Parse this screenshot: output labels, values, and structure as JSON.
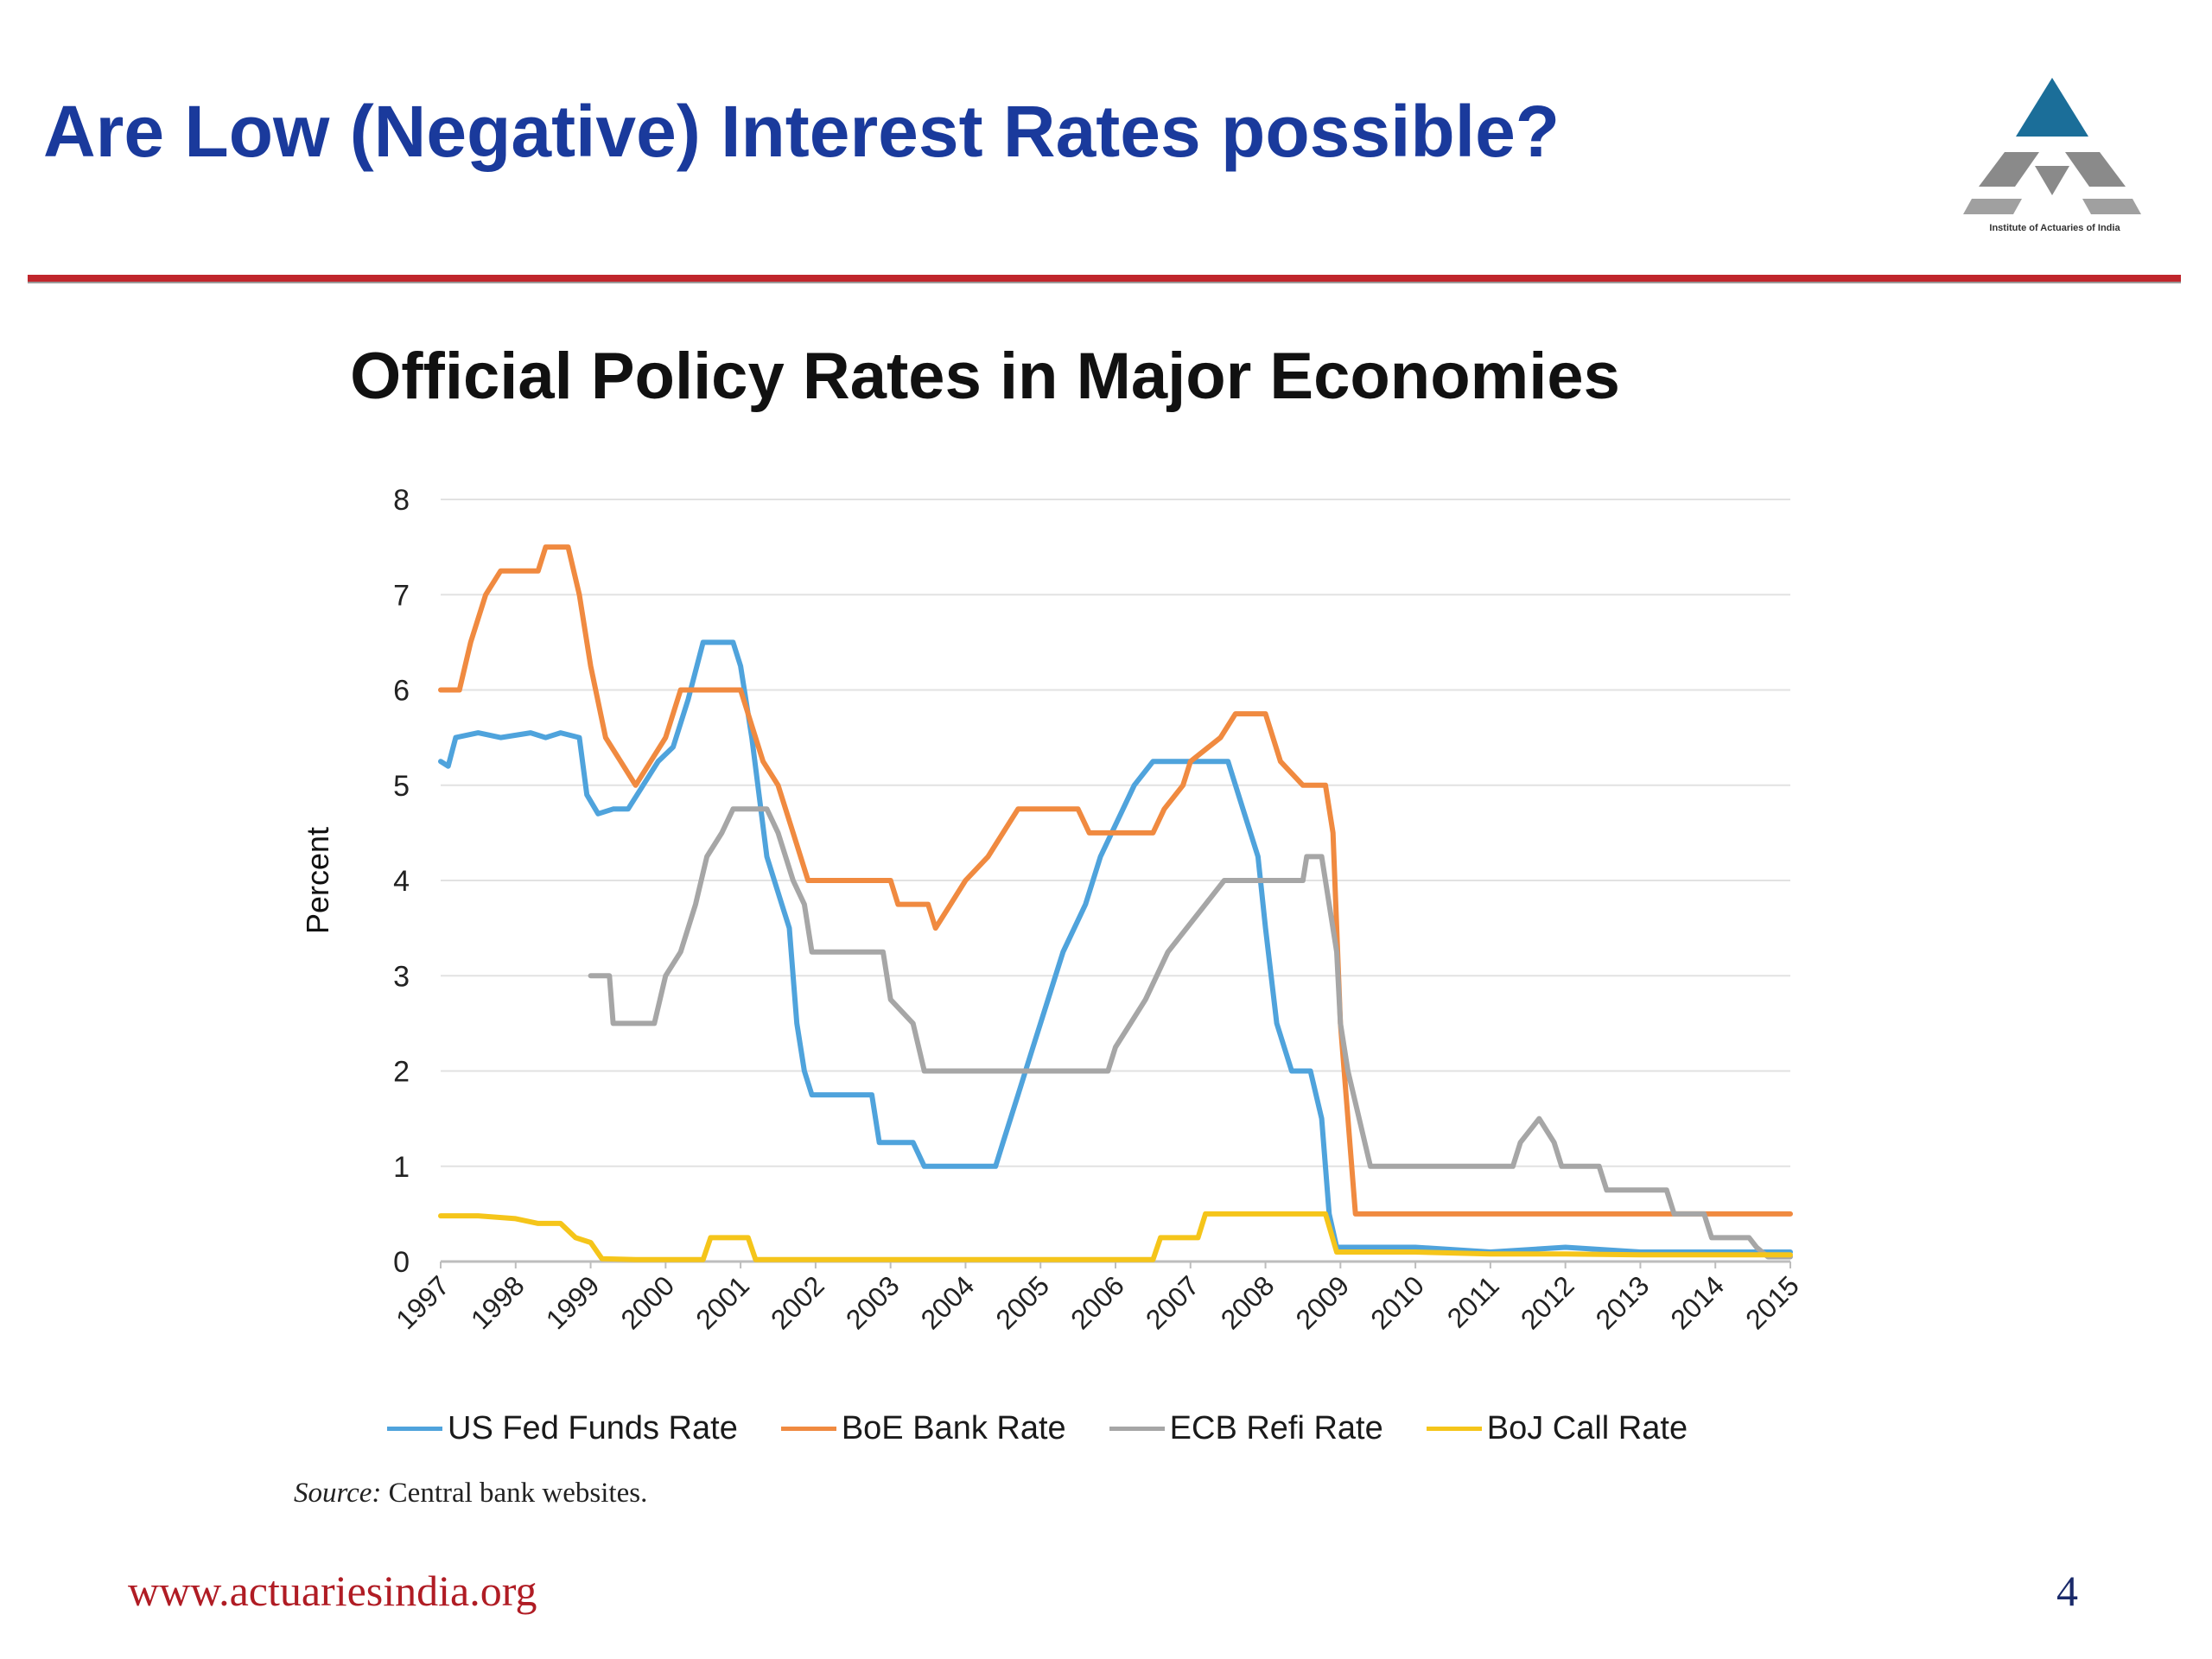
{
  "slide": {
    "title": "Are Low (Negative) Interest Rates possible?",
    "logo_caption": "Institute of Actuaries of India",
    "footer_url": "www.actuariesindia.org",
    "page_number": "4",
    "source_label": "Source:",
    "source_text": " Central bank websites."
  },
  "colors": {
    "title": "#1a3a9c",
    "rule": "#c0262c",
    "us_fed": "#4fa3dc",
    "boe": "#f08a40",
    "ecb": "#a6a6a6",
    "boj": "#f5c51a"
  },
  "chart_data": {
    "type": "line",
    "title": "Official Policy Rates in Major Economies",
    "xlabel": "",
    "ylabel": "Percent",
    "xlim": [
      1997,
      2015
    ],
    "ylim": [
      0,
      8
    ],
    "grid": true,
    "legend_position": "bottom",
    "x_tick_labels": [
      "1997",
      "1998",
      "1999",
      "2000",
      "2001",
      "2002",
      "2003",
      "2004",
      "2005",
      "2006",
      "2007",
      "2008",
      "2009",
      "2010",
      "2011",
      "2012",
      "2013",
      "2014",
      "2015"
    ],
    "y_tick_labels": [
      "0",
      "1",
      "2",
      "3",
      "4",
      "5",
      "6",
      "7",
      "8"
    ],
    "series": [
      {
        "name": "US Fed Funds Rate",
        "color": "#4fa3dc",
        "points": [
          [
            1997.0,
            5.25
          ],
          [
            1997.1,
            5.2
          ],
          [
            1997.2,
            5.5
          ],
          [
            1997.5,
            5.55
          ],
          [
            1997.8,
            5.5
          ],
          [
            1998.2,
            5.55
          ],
          [
            1998.4,
            5.5
          ],
          [
            1998.6,
            5.55
          ],
          [
            1998.85,
            5.5
          ],
          [
            1998.95,
            4.9
          ],
          [
            1999.1,
            4.7
          ],
          [
            1999.3,
            4.75
          ],
          [
            1999.5,
            4.75
          ],
          [
            1999.7,
            5.0
          ],
          [
            1999.9,
            5.25
          ],
          [
            2000.1,
            5.4
          ],
          [
            2000.3,
            5.9
          ],
          [
            2000.5,
            6.5
          ],
          [
            2000.7,
            6.5
          ],
          [
            2000.9,
            6.5
          ],
          [
            2001.0,
            6.25
          ],
          [
            2001.15,
            5.5
          ],
          [
            2001.35,
            4.25
          ],
          [
            2001.55,
            3.75
          ],
          [
            2001.65,
            3.5
          ],
          [
            2001.75,
            2.5
          ],
          [
            2001.85,
            2.0
          ],
          [
            2001.95,
            1.75
          ],
          [
            2002.5,
            1.75
          ],
          [
            2002.75,
            1.75
          ],
          [
            2002.85,
            1.25
          ],
          [
            2003.3,
            1.25
          ],
          [
            2003.45,
            1.0
          ],
          [
            2003.9,
            1.0
          ],
          [
            2004.4,
            1.0
          ],
          [
            2004.5,
            1.25
          ],
          [
            2004.7,
            1.75
          ],
          [
            2004.9,
            2.25
          ],
          [
            2005.1,
            2.75
          ],
          [
            2005.3,
            3.25
          ],
          [
            2005.6,
            3.75
          ],
          [
            2005.8,
            4.25
          ],
          [
            2006.1,
            4.75
          ],
          [
            2006.25,
            5.0
          ],
          [
            2006.5,
            5.25
          ],
          [
            2007.0,
            5.25
          ],
          [
            2007.5,
            5.25
          ],
          [
            2007.7,
            4.75
          ],
          [
            2007.9,
            4.25
          ],
          [
            2008.0,
            3.5
          ],
          [
            2008.15,
            2.5
          ],
          [
            2008.35,
            2.0
          ],
          [
            2008.6,
            2.0
          ],
          [
            2008.75,
            1.5
          ],
          [
            2008.85,
            0.5
          ],
          [
            2008.95,
            0.15
          ],
          [
            2009.5,
            0.15
          ],
          [
            2010.0,
            0.15
          ],
          [
            2011.0,
            0.1
          ],
          [
            2012.0,
            0.15
          ],
          [
            2013.0,
            0.1
          ],
          [
            2014.0,
            0.1
          ],
          [
            2015.0,
            0.1
          ]
        ]
      },
      {
        "name": "BoE Bank Rate",
        "color": "#f08a40",
        "points": [
          [
            1997.0,
            6.0
          ],
          [
            1997.25,
            6.0
          ],
          [
            1997.4,
            6.5
          ],
          [
            1997.6,
            7.0
          ],
          [
            1997.8,
            7.25
          ],
          [
            1998.0,
            7.25
          ],
          [
            1998.3,
            7.25
          ],
          [
            1998.4,
            7.5
          ],
          [
            1998.7,
            7.5
          ],
          [
            1998.85,
            7.0
          ],
          [
            1999.0,
            6.25
          ],
          [
            1999.2,
            5.5
          ],
          [
            1999.4,
            5.25
          ],
          [
            1999.6,
            5.0
          ],
          [
            1999.8,
            5.25
          ],
          [
            2000.0,
            5.5
          ],
          [
            2000.2,
            6.0
          ],
          [
            2000.5,
            6.0
          ],
          [
            2001.0,
            6.0
          ],
          [
            2001.1,
            5.75
          ],
          [
            2001.3,
            5.25
          ],
          [
            2001.5,
            5.0
          ],
          [
            2001.7,
            4.5
          ],
          [
            2001.9,
            4.0
          ],
          [
            2003.0,
            4.0
          ],
          [
            2003.1,
            3.75
          ],
          [
            2003.5,
            3.75
          ],
          [
            2003.6,
            3.5
          ],
          [
            2003.8,
            3.75
          ],
          [
            2004.0,
            4.0
          ],
          [
            2004.3,
            4.25
          ],
          [
            2004.5,
            4.5
          ],
          [
            2004.7,
            4.75
          ],
          [
            2005.5,
            4.75
          ],
          [
            2005.65,
            4.5
          ],
          [
            2006.5,
            4.5
          ],
          [
            2006.65,
            4.75
          ],
          [
            2006.9,
            5.0
          ],
          [
            2007.0,
            5.25
          ],
          [
            2007.4,
            5.5
          ],
          [
            2007.6,
            5.75
          ],
          [
            2008.0,
            5.75
          ],
          [
            2008.2,
            5.25
          ],
          [
            2008.5,
            5.0
          ],
          [
            2008.8,
            5.0
          ],
          [
            2008.9,
            4.5
          ],
          [
            2009.0,
            2.5
          ],
          [
            2009.1,
            1.5
          ],
          [
            2009.2,
            0.5
          ],
          [
            2010.0,
            0.5
          ],
          [
            2015.0,
            0.5
          ]
        ]
      },
      {
        "name": "ECB Refi Rate",
        "color": "#a6a6a6",
        "points": [
          [
            1999.0,
            3.0
          ],
          [
            1999.25,
            3.0
          ],
          [
            1999.3,
            2.5
          ],
          [
            1999.85,
            2.5
          ],
          [
            2000.0,
            3.0
          ],
          [
            2000.2,
            3.25
          ],
          [
            2000.4,
            3.75
          ],
          [
            2000.55,
            4.25
          ],
          [
            2000.75,
            4.5
          ],
          [
            2000.9,
            4.75
          ],
          [
            2001.35,
            4.75
          ],
          [
            2001.5,
            4.5
          ],
          [
            2001.7,
            4.0
          ],
          [
            2001.85,
            3.75
          ],
          [
            2001.95,
            3.25
          ],
          [
            2002.9,
            3.25
          ],
          [
            2003.0,
            2.75
          ],
          [
            2003.3,
            2.5
          ],
          [
            2003.45,
            2.0
          ],
          [
            2005.9,
            2.0
          ],
          [
            2006.0,
            2.25
          ],
          [
            2006.2,
            2.5
          ],
          [
            2006.4,
            2.75
          ],
          [
            2006.55,
            3.0
          ],
          [
            2006.7,
            3.25
          ],
          [
            2006.95,
            3.5
          ],
          [
            2007.2,
            3.75
          ],
          [
            2007.45,
            4.0
          ],
          [
            2008.5,
            4.0
          ],
          [
            2008.55,
            4.25
          ],
          [
            2008.75,
            4.25
          ],
          [
            2008.85,
            3.75
          ],
          [
            2008.95,
            3.25
          ],
          [
            2009.0,
            2.5
          ],
          [
            2009.1,
            2.0
          ],
          [
            2009.25,
            1.5
          ],
          [
            2009.4,
            1.0
          ],
          [
            2011.3,
            1.0
          ],
          [
            2011.4,
            1.25
          ],
          [
            2011.65,
            1.5
          ],
          [
            2011.85,
            1.25
          ],
          [
            2011.95,
            1.0
          ],
          [
            2012.45,
            1.0
          ],
          [
            2012.55,
            0.75
          ],
          [
            2013.35,
            0.75
          ],
          [
            2013.45,
            0.5
          ],
          [
            2013.85,
            0.5
          ],
          [
            2013.95,
            0.25
          ],
          [
            2014.45,
            0.25
          ],
          [
            2014.55,
            0.15
          ],
          [
            2014.7,
            0.05
          ],
          [
            2015.0,
            0.05
          ]
        ]
      },
      {
        "name": "BoJ Call Rate",
        "color": "#f5c51a",
        "points": [
          [
            1997.0,
            0.48
          ],
          [
            1997.5,
            0.48
          ],
          [
            1998.0,
            0.45
          ],
          [
            1998.3,
            0.4
          ],
          [
            1998.6,
            0.4
          ],
          [
            1998.8,
            0.25
          ],
          [
            1999.0,
            0.2
          ],
          [
            1999.15,
            0.03
          ],
          [
            1999.6,
            0.02
          ],
          [
            2000.5,
            0.02
          ],
          [
            2000.6,
            0.25
          ],
          [
            2000.9,
            0.25
          ],
          [
            2001.1,
            0.25
          ],
          [
            2001.2,
            0.02
          ],
          [
            2006.5,
            0.02
          ],
          [
            2006.6,
            0.25
          ],
          [
            2007.1,
            0.25
          ],
          [
            2007.2,
            0.5
          ],
          [
            2008.8,
            0.5
          ],
          [
            2008.95,
            0.1
          ],
          [
            2010.0,
            0.1
          ],
          [
            2011.0,
            0.08
          ],
          [
            2012.0,
            0.08
          ],
          [
            2013.0,
            0.07
          ],
          [
            2014.0,
            0.07
          ],
          [
            2015.0,
            0.07
          ]
        ]
      }
    ]
  }
}
